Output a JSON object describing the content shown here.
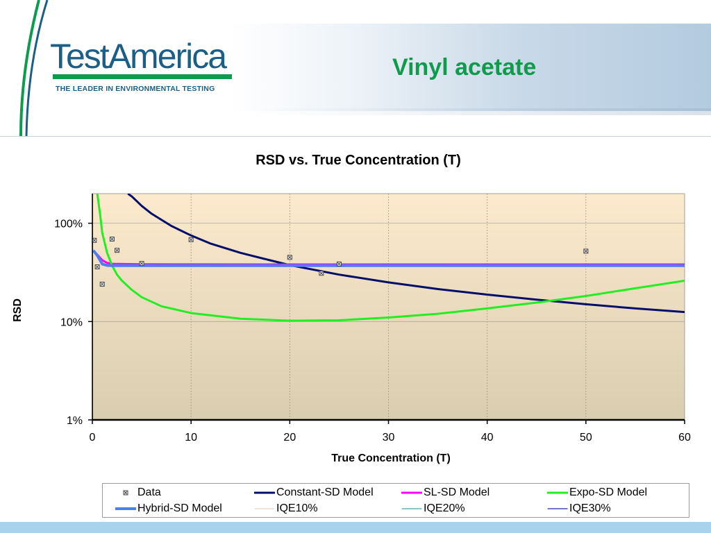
{
  "header": {
    "logo_text": "TestAmerica",
    "logo_tagline": "THE LEADER IN ENVIRONMENTAL TESTING",
    "slide_title": "Vinyl acetate"
  },
  "colors": {
    "brand_blue": "#1b5f86",
    "brand_green": "#109a4c",
    "plot_bg_top": "#fdeacd",
    "plot_bg_bottom": "#d9cdb0"
  },
  "chart_data": {
    "type": "scatter",
    "title": "RSD vs. True Concentration (T)",
    "xlabel": "True Concentration (T)",
    "ylabel": "RSD",
    "xlim": [
      0,
      60
    ],
    "ylim": [
      1,
      200
    ],
    "y_scale": "log",
    "x_ticks": [
      "0",
      "10",
      "20",
      "30",
      "40",
      "50",
      "60"
    ],
    "y_ticks": [
      {
        "value": 100,
        "label": "100%"
      },
      {
        "value": 10,
        "label": "10%"
      },
      {
        "value": 1,
        "label": "1%"
      }
    ],
    "grid": true,
    "legend_position": "bottom",
    "series": [
      {
        "name": "Data",
        "kind": "points",
        "color": "#444444",
        "points": [
          [
            0.2,
            67
          ],
          [
            0.5,
            36
          ],
          [
            1.0,
            24
          ],
          [
            2.0,
            69
          ],
          [
            2.5,
            53
          ],
          [
            5.0,
            39
          ],
          [
            10.0,
            68
          ],
          [
            20.0,
            45
          ],
          [
            23.2,
            31
          ],
          [
            25.0,
            38.5
          ],
          [
            50.0,
            52
          ]
        ]
      },
      {
        "name": "Constant-SD Model",
        "kind": "line",
        "color": "#000d6b",
        "width": 3,
        "points": [
          [
            3.6,
            200
          ],
          [
            4,
            187
          ],
          [
            5,
            150
          ],
          [
            6,
            125
          ],
          [
            8,
            94
          ],
          [
            10,
            75
          ],
          [
            12,
            62
          ],
          [
            15,
            50
          ],
          [
            18,
            42
          ],
          [
            20,
            37.5
          ],
          [
            25,
            30
          ],
          [
            30,
            25
          ],
          [
            35,
            21.4
          ],
          [
            40,
            18.8
          ],
          [
            45,
            16.7
          ],
          [
            50,
            15
          ],
          [
            55,
            13.6
          ],
          [
            60,
            12.5
          ]
        ]
      },
      {
        "name": "SL-SD Model",
        "kind": "line",
        "color": "#ff00ff",
        "width": 3,
        "points": [
          [
            0.1,
            52
          ],
          [
            0.5,
            48
          ],
          [
            1.0,
            42
          ],
          [
            1.5,
            39.5
          ],
          [
            2,
            38.7
          ],
          [
            5,
            38.3
          ],
          [
            10,
            38.2
          ],
          [
            20,
            38.1
          ],
          [
            40,
            38.1
          ],
          [
            60,
            38.1
          ]
        ]
      },
      {
        "name": "Expo-SD Model",
        "kind": "line",
        "color": "#22ee22",
        "width": 3,
        "points": [
          [
            0.5,
            200
          ],
          [
            0.8,
            120
          ],
          [
            1.0,
            80
          ],
          [
            1.5,
            50
          ],
          [
            2,
            37
          ],
          [
            2.5,
            30
          ],
          [
            3,
            26
          ],
          [
            4,
            21
          ],
          [
            5,
            17.7
          ],
          [
            7,
            14.3
          ],
          [
            10,
            12.2
          ],
          [
            15,
            10.7
          ],
          [
            20,
            10.2
          ],
          [
            25,
            10.3
          ],
          [
            30,
            11
          ],
          [
            35,
            12
          ],
          [
            40,
            13.6
          ],
          [
            45,
            15.6
          ],
          [
            50,
            18.2
          ],
          [
            55,
            21.8
          ],
          [
            60,
            26
          ]
        ]
      },
      {
        "name": "Hybrid-SD Model",
        "kind": "line",
        "color": "#4a7ff0",
        "width": 4,
        "points": [
          [
            0.1,
            53
          ],
          [
            0.5,
            47
          ],
          [
            1.0,
            38.5
          ],
          [
            1.5,
            37.2
          ],
          [
            2,
            37
          ],
          [
            5,
            37
          ],
          [
            10,
            37
          ],
          [
            20,
            37
          ],
          [
            40,
            37
          ],
          [
            60,
            37
          ]
        ]
      },
      {
        "name": "IQE10%",
        "kind": "line",
        "color": "#e0c8b8",
        "width": 1,
        "points": []
      },
      {
        "name": "IQE20%",
        "kind": "line",
        "color": "#1a8a8a",
        "width": 1,
        "points": []
      },
      {
        "name": "IQE30%",
        "kind": "line",
        "color": "#2222aa",
        "width": 1.2,
        "points": [
          [
            0.02,
            1
          ],
          [
            0.02,
            200
          ]
        ]
      }
    ]
  }
}
